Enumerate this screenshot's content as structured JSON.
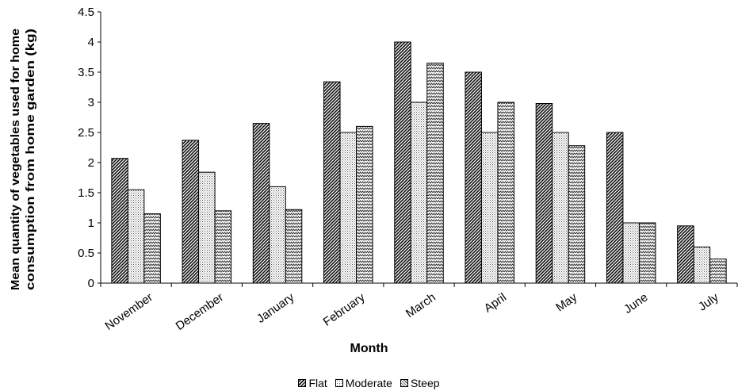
{
  "chart_data": {
    "type": "bar",
    "title": "",
    "xlabel": "Month",
    "ylabel_lines": [
      "Mean quantity of vegetables used for home",
      "consumption from home garden (kg)"
    ],
    "categories": [
      "November",
      "December",
      "January",
      "February",
      "March",
      "April",
      "May",
      "June",
      "July"
    ],
    "series": [
      {
        "name": "Flat",
        "pattern": "diagonal",
        "values": [
          2.07,
          2.37,
          2.65,
          3.34,
          4.0,
          3.5,
          2.98,
          2.5,
          0.95
        ]
      },
      {
        "name": "Moderate",
        "pattern": "dots",
        "values": [
          1.55,
          1.84,
          1.6,
          2.5,
          3.0,
          2.5,
          2.5,
          1.0,
          0.6
        ]
      },
      {
        "name": "Steep",
        "pattern": "zigzag",
        "values": [
          1.15,
          1.2,
          1.22,
          2.6,
          3.65,
          3.0,
          2.28,
          1.0,
          0.4
        ]
      }
    ],
    "ylim": [
      0,
      4.5
    ],
    "yticks": [
      "0",
      "0.5",
      "1",
      "1.5",
      "2",
      "2.5",
      "3",
      "3.5",
      "4",
      "4.5"
    ],
    "grid": false,
    "legend_position": "bottom"
  }
}
